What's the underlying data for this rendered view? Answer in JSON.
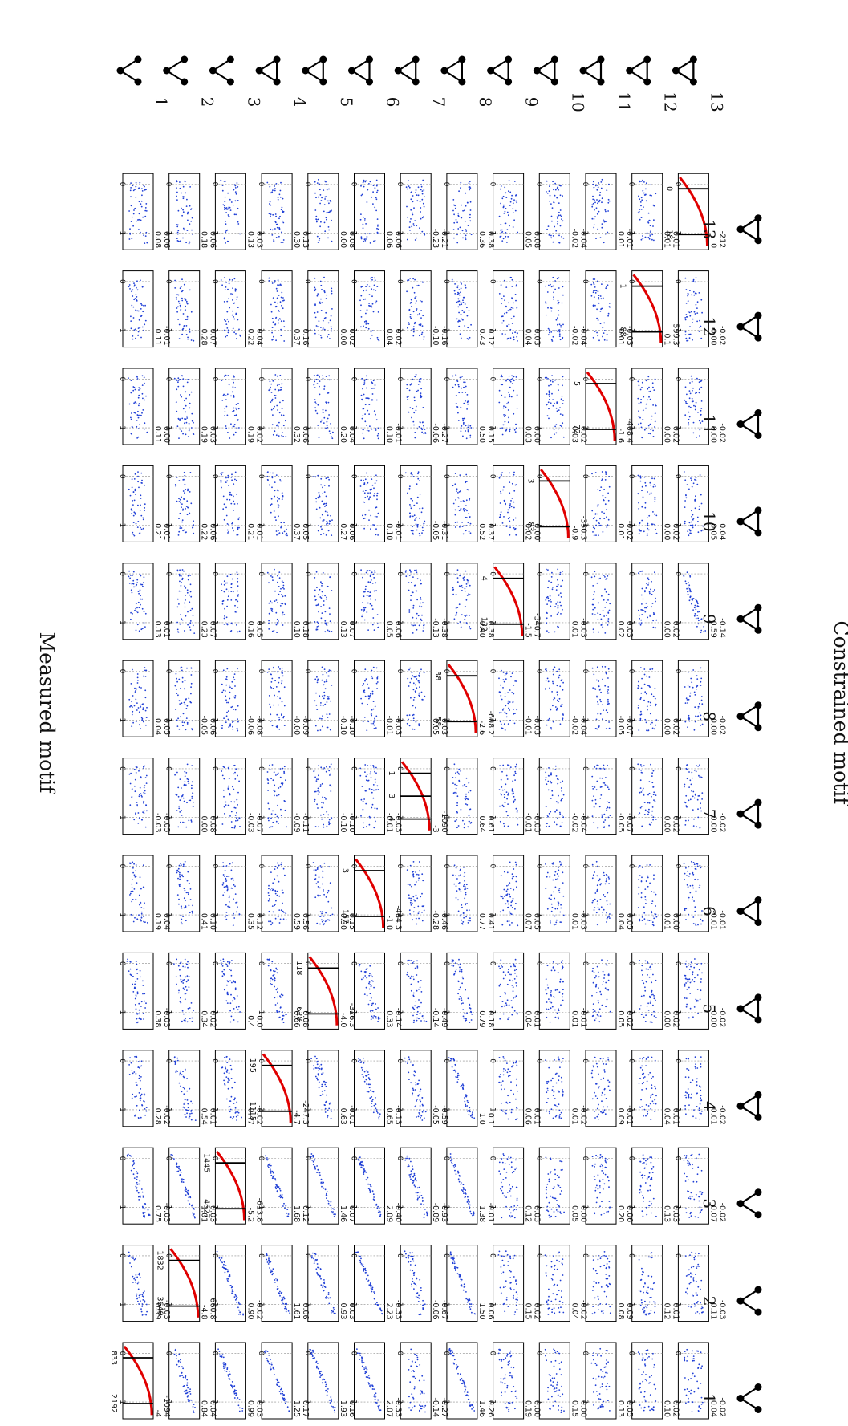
{
  "title": "Measured motif",
  "side_label": "Constrained motif",
  "motif_labels": [
    "1",
    "2",
    "3",
    "4",
    "5",
    "6",
    "7",
    "8",
    "9",
    "10",
    "11",
    "12",
    "13"
  ],
  "colors": {
    "scatter": "#1f3fd6",
    "diagonal_curve": "#e00000",
    "frame": "#000000"
  },
  "chart_data": {
    "type": "scatter",
    "layout": "13x13 grid of panels; rows = constrained motif, columns = measured motif; diagonal panels show curves with marked values",
    "x_ticks": [
      "0",
      "1"
    ],
    "diagonal": [
      {
        "row": 1,
        "ymin": "-1094",
        "ymax": "-4",
        "markers": [
          "833",
          "2192"
        ]
      },
      {
        "row": 2,
        "ymin": "-660.8",
        "ymax": "-4.8",
        "markers": [
          "1832",
          "3649"
        ]
      },
      {
        "row": 3,
        "ymin": "-613.8",
        "ymax": "-5.2",
        "markers": [
          "1445",
          "4627"
        ]
      },
      {
        "row": 4,
        "ymin": "-247.3",
        "ymax": "-4.7",
        "markers": [
          "195",
          "1115"
        ]
      },
      {
        "row": 5,
        "ymin": "-326.3",
        "ymax": "-4.0",
        "markers": [
          "118",
          "628"
        ]
      },
      {
        "row": 6,
        "ymin": "-464.3",
        "ymax": "-1.0",
        "markers": [
          "3",
          "157"
        ]
      },
      {
        "row": 7,
        "ymin": "-1090",
        "ymax": "-3",
        "markers": [
          "1",
          "3",
          "4"
        ]
      },
      {
        "row": 8,
        "ymin": "-608.2",
        "ymax": "-2.6",
        "markers": [
          "38",
          "58"
        ]
      },
      {
        "row": 9,
        "ymin": "-340.7",
        "ymax": "-1.5",
        "markers": [
          "4",
          "132"
        ]
      },
      {
        "row": 10,
        "ymin": "-350.3",
        "ymax": "-0.9",
        "markers": [
          "3",
          "83"
        ]
      },
      {
        "row": 11,
        "ymin": "-408.4",
        "ymax": "-1.6",
        "markers": [
          "5",
          "72"
        ]
      },
      {
        "row": 12,
        "ymin": "-599.3",
        "ymax": "-0.1",
        "markers": [
          "1",
          "88"
        ]
      },
      {
        "row": 13,
        "ymin": "-212",
        "ymax": "0",
        "markers": [
          "0",
          "18"
        ]
      }
    ],
    "panels": [
      [
        null,
        [
          "0.84",
          "0.04"
        ],
        [
          "0.99",
          "0.03"
        ],
        [
          "1.25",
          "0.17"
        ],
        [
          "1.93",
          "0.16"
        ],
        [
          "2.07",
          "-0.33"
        ],
        [
          "-0.14",
          "-0.27"
        ],
        [
          "1.46",
          "0.26"
        ],
        [
          "0.19",
          "0.00"
        ],
        [
          "0.15",
          "0.00"
        ],
        [
          "0.13",
          "0.05"
        ],
        [
          "0.10",
          "-0.02"
        ],
        [
          "0.04",
          "-0.02"
        ]
      ],
      [
        [
          "0.59",
          "-0.03"
        ],
        null,
        [
          "0.90",
          "-0.02"
        ],
        [
          "1.61",
          "0.06"
        ],
        [
          "0.93",
          "0.03"
        ],
        [
          "2.23",
          "-0.33"
        ],
        [
          "-0.06",
          "-0.67"
        ],
        [
          "1.50",
          "0.06"
        ],
        [
          "0.15",
          "0.02"
        ],
        [
          "0.04",
          "-0.02"
        ],
        [
          "0.08",
          "0.09"
        ],
        [
          "0.12",
          "-0.01"
        ],
        [
          "0.11",
          "-0.03"
        ]
      ],
      [
        [
          "0.75",
          "-0.03"
        ],
        [
          "1.01",
          "0.03"
        ],
        null,
        [
          "1.68",
          "0.12"
        ],
        [
          "1.46",
          "0.07"
        ],
        [
          "2.09",
          "-0.40"
        ],
        [
          "-0.09",
          "-0.93"
        ],
        [
          "1.38",
          "-0.01"
        ],
        [
          "0.12",
          "0.03"
        ],
        [
          "0.05",
          "0.00"
        ],
        [
          "0.20",
          "0.06"
        ],
        [
          "0.13",
          "-0.03"
        ],
        [
          "0.07",
          "-0.02"
        ]
      ],
      [
        [
          "0.28",
          "-0.02"
        ],
        [
          "0.54",
          "-0.01"
        ],
        [
          "0.47",
          "-0.02"
        ],
        null,
        [
          "0.63",
          "-0.01"
        ],
        [
          "0.65",
          "-0.13"
        ],
        [
          "-0.05",
          "-0.59"
        ],
        [
          "1.0",
          "0.1"
        ],
        [
          "0.06",
          "0.01"
        ],
        [
          "0.01",
          "-0.02"
        ],
        [
          "0.09",
          "-0.01"
        ],
        [
          "0.04",
          "-0.01"
        ],
        [
          "0.01",
          "-0.02"
        ]
      ],
      [
        [
          "0.38",
          "-0.03"
        ],
        [
          "0.34",
          "0.02"
        ],
        [
          "0.4",
          "0.0"
        ],
        [
          "0.66",
          "0.08"
        ],
        null,
        [
          "0.33",
          "-0.14"
        ],
        [
          "-0.14",
          "-0.49"
        ],
        [
          "0.79",
          "0.18"
        ],
        [
          "0.04",
          "0.01"
        ],
        [
          "0.01",
          "-0.01"
        ],
        [
          "0.05",
          "0.02"
        ],
        [
          "0.00",
          "-0.02"
        ],
        [
          "0.00",
          "-0.02"
        ]
      ],
      [
        [
          "0.19",
          "0.04"
        ],
        [
          "0.41",
          "0.10"
        ],
        [
          "0.35",
          "0.12"
        ],
        [
          "0.59",
          "0.56"
        ],
        [
          "0.30",
          "0.15"
        ],
        null,
        [
          "-0.28",
          "-0.46"
        ],
        [
          "0.77",
          "0.41"
        ],
        [
          "0.07",
          "0.05"
        ],
        [
          "0.01",
          "-0.03"
        ],
        [
          "0.04",
          "0.05"
        ],
        [
          "0.01",
          "0.00"
        ],
        [
          "-0.01",
          "-0.01"
        ]
      ],
      [
        [
          "-0.03",
          "-0.05"
        ],
        [
          "0.00",
          "-0.08"
        ],
        [
          "-0.03",
          "-0.07"
        ],
        [
          "-0.09",
          "-0.11"
        ],
        [
          "-0.10",
          "-0.10"
        ],
        [
          "-0.01",
          "-0.03"
        ],
        null,
        [
          "0.64",
          "0.61"
        ],
        [
          "-0.01",
          "-0.03"
        ],
        [
          "-0.02",
          "-0.04"
        ],
        [
          "-0.05",
          "-0.07"
        ],
        [
          "0.00",
          "-0.02"
        ],
        [
          "0.00",
          "-0.02"
        ]
      ],
      [
        [
          "0.04",
          "0.05"
        ],
        [
          "-0.05",
          "-0.06"
        ],
        [
          "-0.06",
          "-0.08"
        ],
        [
          "-0.00",
          "-0.09"
        ],
        [
          "-0.10",
          "-0.10"
        ],
        [
          "-0.01",
          "-0.03"
        ],
        [
          "0.05",
          "0.03"
        ],
        null,
        [
          "-0.01",
          "-0.03"
        ],
        [
          "-0.02",
          "-0.04"
        ],
        [
          "-0.05",
          "-0.07"
        ],
        [
          "0.00",
          "-0.02"
        ],
        [
          "0.00",
          "-0.02"
        ]
      ],
      [
        [
          "0.13",
          "0.01"
        ],
        [
          "0.23",
          "0.07"
        ],
        [
          "0.16",
          "0.05"
        ],
        [
          "0.10",
          "0.18"
        ],
        [
          "0.13",
          "0.07"
        ],
        [
          "0.05",
          "0.06"
        ],
        [
          "-0.13",
          "-0.38"
        ],
        [
          "0.40",
          "0.38"
        ],
        null,
        [
          "0.01",
          "-0.03"
        ],
        [
          "0.02",
          "0.03"
        ],
        [
          "0.00",
          "-0.02"
        ],
        [
          "0.59",
          "-0.14"
        ]
      ],
      [
        [
          "0.21",
          "0.01"
        ],
        [
          "0.22",
          "0.06"
        ],
        [
          "0.21",
          "0.01"
        ],
        [
          "0.37",
          "0.05"
        ],
        [
          "0.27",
          "0.06"
        ],
        [
          "0.10",
          "-0.01"
        ],
        [
          "-0.05",
          "-0.31"
        ],
        [
          "0.52",
          "0.37"
        ],
        [
          "0.02",
          "0.00"
        ],
        null,
        [
          "0.01",
          "-0.02"
        ],
        [
          "0.00",
          "-0.02"
        ],
        [
          "0.05",
          "0.04"
        ]
      ],
      [
        [
          "0.11",
          "0.00"
        ],
        [
          "0.19",
          "0.03"
        ],
        [
          "0.19",
          "0.02"
        ],
        [
          "0.32",
          "0.06"
        ],
        [
          "0.20",
          "0.04"
        ],
        [
          "0.10",
          "-0.01"
        ],
        [
          "-0.06",
          "-0.27"
        ],
        [
          "0.50",
          "0.15"
        ],
        [
          "0.03",
          "0.00"
        ],
        [
          "0.03",
          "0.02"
        ],
        null,
        [
          "0.00",
          "-0.02"
        ],
        [
          "0.00",
          "-0.02"
        ]
      ],
      [
        [
          "0.11",
          "-0.01"
        ],
        [
          "0.28",
          "0.07"
        ],
        [
          "0.22",
          "0.04"
        ],
        [
          "0.37",
          "0.16"
        ],
        [
          "0.00",
          "0.02"
        ],
        [
          "0.04",
          "0.02"
        ],
        [
          "-0.10",
          "-0.16"
        ],
        [
          "0.43",
          "0.12"
        ],
        [
          "0.04",
          "0.03"
        ],
        [
          "-0.02",
          "-0.04"
        ],
        [
          "0.01",
          "-0.03"
        ],
        null,
        [
          "0.00",
          "-0.02"
        ]
      ],
      [
        [
          "0.08",
          "0.06"
        ],
        [
          "0.18",
          "0.06"
        ],
        [
          "0.13",
          "0.03"
        ],
        [
          "0.30",
          "0.13"
        ],
        [
          "0.00",
          "0.08"
        ],
        [
          "0.06",
          "0.06"
        ],
        [
          "-0.23",
          "-0.21"
        ],
        [
          "0.36",
          "0.38"
        ],
        [
          "0.05",
          "0.08"
        ],
        [
          "-0.02",
          "-0.04"
        ],
        [
          "0.01",
          "-0.01"
        ],
        [
          "0.01",
          "-0.01"
        ],
        null
      ]
    ]
  }
}
